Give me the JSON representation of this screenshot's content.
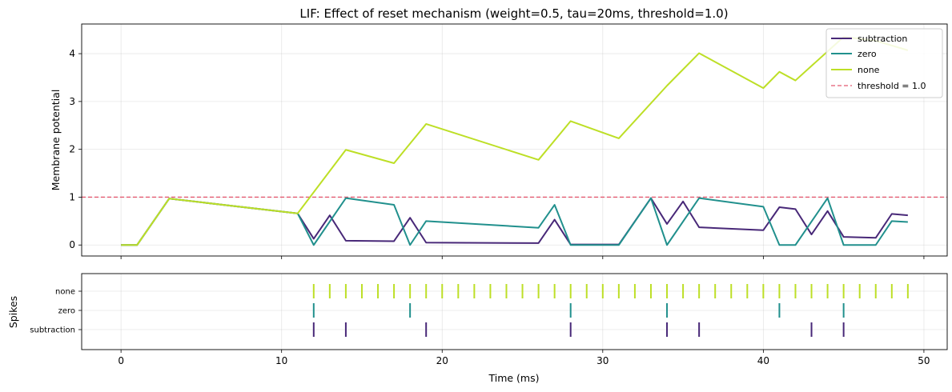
{
  "chart_data": [
    {
      "type": "line",
      "title": "LIF: Effect of reset mechanism  (weight=0.5, tau=20ms, threshold=1.0)",
      "xlabel": "",
      "ylabel": "Membrane potential",
      "xlim": [
        -2.45,
        51.45
      ],
      "ylim": [
        -0.23,
        4.62
      ],
      "xticks": [
        0,
        10,
        20,
        30,
        40,
        50
      ],
      "yticks": [
        0,
        1,
        2,
        3,
        4
      ],
      "grid": true,
      "legend": "upper right",
      "threshold": {
        "label": "threshold = 1.0",
        "value": 1.0,
        "color": "#e45a70"
      },
      "series": [
        {
          "name": "subtraction",
          "color": "#482878",
          "x": [
            0,
            1,
            3,
            11,
            12,
            13,
            14,
            17,
            18,
            19,
            26,
            27,
            28,
            31,
            33,
            34,
            35,
            36,
            40,
            41,
            42,
            43,
            44,
            45,
            47,
            48,
            49
          ],
          "y": [
            0,
            0,
            0.97,
            0.66,
            0.13,
            0.62,
            0.09,
            0.08,
            0.57,
            0.05,
            0.04,
            0.53,
            0.01,
            0.01,
            0.98,
            0.44,
            0.91,
            0.37,
            0.31,
            0.79,
            0.75,
            0.22,
            0.71,
            0.17,
            0.15,
            0.65,
            0.62
          ]
        },
        {
          "name": "zero",
          "color": "#21908d",
          "x": [
            0,
            1,
            3,
            11,
            12,
            14,
            17,
            18,
            19,
            26,
            27,
            28,
            31,
            33,
            34,
            36,
            40,
            41,
            42,
            44,
            45,
            47,
            48,
            49
          ],
          "y": [
            0,
            0,
            0.97,
            0.66,
            0,
            0.98,
            0.84,
            0,
            0.5,
            0.36,
            0.84,
            0,
            0,
            0.98,
            0,
            0.98,
            0.8,
            0,
            0,
            0.98,
            0,
            0,
            0.5,
            0.48
          ]
        },
        {
          "name": "none",
          "color": "#bddf26",
          "x": [
            0,
            1,
            3,
            11,
            14,
            17,
            19,
            26,
            28,
            31,
            34,
            36,
            40,
            41,
            42,
            45,
            47,
            49
          ],
          "y": [
            0,
            0,
            0.97,
            0.66,
            1.99,
            1.71,
            2.53,
            1.78,
            2.59,
            2.23,
            3.33,
            4.01,
            3.28,
            3.62,
            3.44,
            4.35,
            4.27,
            4.07
          ]
        }
      ]
    },
    {
      "type": "scatter",
      "title": "",
      "xlabel": "Time (ms)",
      "ylabel": "Spikes",
      "xlim": [
        -2.45,
        51.45
      ],
      "xticks": [
        0,
        10,
        20,
        30,
        40,
        50
      ],
      "grid": true,
      "categories": [
        "subtraction",
        "zero",
        "none"
      ],
      "series": [
        {
          "name": "none",
          "color": "#bddf26",
          "x": [
            12,
            13,
            14,
            15,
            16,
            17,
            18,
            19,
            20,
            21,
            22,
            23,
            24,
            25,
            26,
            27,
            28,
            29,
            30,
            31,
            32,
            33,
            34,
            35,
            36,
            37,
            38,
            39,
            40,
            41,
            42,
            43,
            44,
            45,
            46,
            47,
            48,
            49
          ]
        },
        {
          "name": "zero",
          "color": "#21908d",
          "x": [
            12,
            18,
            28,
            34,
            41,
            45
          ]
        },
        {
          "name": "subtraction",
          "color": "#482878",
          "x": [
            12,
            14,
            19,
            28,
            34,
            36,
            43,
            45
          ]
        }
      ]
    }
  ]
}
